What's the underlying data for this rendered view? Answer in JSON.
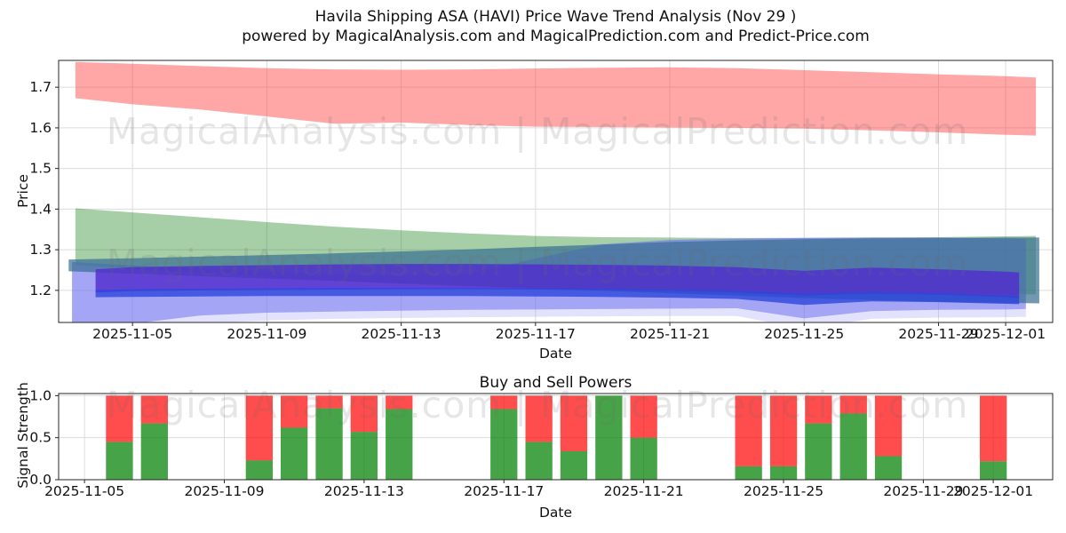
{
  "title": {
    "line1": "Havila Shipping ASA (HAVI) Price Wave Trend Analysis (Nov 29 )",
    "line2": "powered by MagicalAnalysis.com and MagicalPrediction.com and Predict-Price.com"
  },
  "watermark": {
    "text": "MagicalAnalysis.com | MagicalPrediction.com"
  },
  "colors": {
    "grid": "#dcdcdc",
    "spine": "#262626",
    "buy_green": "rgba(0,128,0,0.72)",
    "sell_red": "rgba(255,0,0,0.70)",
    "band_red": "rgba(255,60,60,0.45)",
    "band_green": "rgba(20,130,25,0.38)",
    "band_pale": "rgba(140,140,245,0.25)",
    "band_periwinkle": "rgba(110,110,240,0.52)",
    "band_teal": "rgba(55,110,145,0.70)",
    "band_purple": "rgba(80,45,205,0.82)",
    "band_blue": "rgba(45,70,220,0.80)"
  },
  "chart_data": [
    {
      "type": "area",
      "name": "price_wave",
      "xlabel": "Date",
      "ylabel": "Price",
      "day0": "2025-11-03",
      "xlim_days": [
        -0.2,
        29.4
      ],
      "ylim": [
        1.121,
        1.766
      ],
      "yticks": [
        1.2,
        1.3,
        1.4,
        1.5,
        1.6,
        1.7
      ],
      "xticks": [
        {
          "label": "2025-11-05",
          "day": 2
        },
        {
          "label": "2025-11-09",
          "day": 6
        },
        {
          "label": "2025-11-13",
          "day": 10
        },
        {
          "label": "2025-11-17",
          "day": 14
        },
        {
          "label": "2025-11-21",
          "day": 18
        },
        {
          "label": "2025-11-25",
          "day": 22
        },
        {
          "label": "2025-11-29",
          "day": 26
        },
        {
          "label": "2025-12-01",
          "day": 28
        }
      ],
      "bands": [
        {
          "name": "upper-resistance-band",
          "color_key": "band_red",
          "x_days": [
            0.3,
            2,
            4,
            6,
            8,
            10,
            12,
            14,
            16,
            18,
            20,
            22,
            24,
            26,
            28,
            28.9
          ],
          "upper": [
            1.762,
            1.758,
            1.752,
            1.747,
            1.744,
            1.743,
            1.744,
            1.746,
            1.748,
            1.749,
            1.747,
            1.742,
            1.737,
            1.732,
            1.727,
            1.724
          ],
          "lower": [
            1.673,
            1.658,
            1.645,
            1.628,
            1.61,
            1.613,
            1.607,
            1.603,
            1.602,
            1.601,
            1.6,
            1.598,
            1.594,
            1.589,
            1.583,
            1.581
          ]
        },
        {
          "name": "green-trend-band",
          "color_key": "band_green",
          "x_days": [
            0.3,
            2,
            4,
            6,
            8,
            10,
            12,
            14,
            16,
            18,
            20,
            22,
            24,
            26,
            28,
            28.9
          ],
          "upper": [
            1.402,
            1.392,
            1.38,
            1.368,
            1.357,
            1.348,
            1.34,
            1.334,
            1.331,
            1.33,
            1.329,
            1.329,
            1.33,
            1.331,
            1.333,
            1.334
          ],
          "lower": [
            1.263,
            1.253,
            1.243,
            1.233,
            1.224,
            1.216,
            1.209,
            1.203,
            1.198,
            1.194,
            1.191,
            1.19,
            1.19,
            1.19,
            1.19,
            1.19
          ]
        },
        {
          "name": "outer-pale-band",
          "color_key": "band_pale",
          "x_days": [
            0.2,
            2,
            4,
            6,
            8,
            10,
            12,
            14,
            16,
            18,
            20,
            22,
            24,
            26,
            28,
            28.6
          ],
          "upper": [
            1.27,
            1.262,
            1.254,
            1.248,
            1.242,
            1.238,
            1.242,
            1.28,
            1.315,
            1.325,
            1.328,
            1.33,
            1.33,
            1.33,
            1.328,
            1.327
          ],
          "lower": [
            1.08,
            1.1,
            1.118,
            1.126,
            1.13,
            1.132,
            1.134,
            1.135,
            1.136,
            1.137,
            1.137,
            1.105,
            1.13,
            1.133,
            1.134,
            1.135
          ]
        },
        {
          "name": "periwinkle-band",
          "color_key": "band_periwinkle",
          "x_days": [
            0.2,
            2,
            4,
            6,
            8,
            10,
            12,
            14,
            16,
            18,
            20,
            22,
            24,
            26,
            28,
            28.6
          ],
          "upper": [
            1.27,
            1.261,
            1.253,
            1.246,
            1.24,
            1.236,
            1.24,
            1.278,
            1.313,
            1.324,
            1.327,
            1.329,
            1.33,
            1.33,
            1.327,
            1.326
          ],
          "lower": [
            1.1,
            1.118,
            1.138,
            1.145,
            1.148,
            1.15,
            1.152,
            1.153,
            1.154,
            1.155,
            1.156,
            1.131,
            1.149,
            1.152,
            1.153,
            1.154
          ]
        },
        {
          "name": "teal-band",
          "color_key": "band_teal",
          "x_days": [
            0.1,
            2,
            4,
            6,
            8,
            10,
            12,
            14,
            16,
            18,
            20,
            22,
            24,
            26,
            28,
            29.0
          ],
          "upper": [
            1.276,
            1.279,
            1.283,
            1.287,
            1.291,
            1.296,
            1.301,
            1.307,
            1.313,
            1.319,
            1.323,
            1.326,
            1.328,
            1.329,
            1.33,
            1.33
          ],
          "lower": [
            1.247,
            1.241,
            1.235,
            1.229,
            1.223,
            1.217,
            1.211,
            1.205,
            1.199,
            1.193,
            1.187,
            1.181,
            1.176,
            1.172,
            1.169,
            1.168
          ]
        },
        {
          "name": "purple-core-band",
          "color_key": "band_purple",
          "x_days": [
            0.9,
            2,
            4,
            6,
            8,
            10,
            12,
            14,
            16,
            18,
            20,
            22,
            24,
            26,
            28,
            28.4
          ],
          "upper": [
            1.252,
            1.257,
            1.26,
            1.262,
            1.264,
            1.265,
            1.265,
            1.264,
            1.263,
            1.261,
            1.257,
            1.248,
            1.256,
            1.252,
            1.246,
            1.244
          ],
          "lower": [
            1.195,
            1.198,
            1.2,
            1.201,
            1.202,
            1.203,
            1.203,
            1.202,
            1.201,
            1.199,
            1.195,
            1.187,
            1.192,
            1.189,
            1.183,
            1.181
          ]
        },
        {
          "name": "blue-inner-band",
          "color_key": "band_blue",
          "x_days": [
            0.9,
            2,
            4,
            6,
            8,
            10,
            12,
            14,
            16,
            18,
            20,
            22,
            24,
            26,
            28,
            28.4
          ],
          "upper": [
            1.201,
            1.203,
            1.204,
            1.205,
            1.206,
            1.206,
            1.206,
            1.205,
            1.204,
            1.202,
            1.199,
            1.192,
            1.196,
            1.193,
            1.187,
            1.185
          ],
          "lower": [
            1.183,
            1.184,
            1.185,
            1.186,
            1.186,
            1.186,
            1.186,
            1.185,
            1.184,
            1.182,
            1.179,
            1.164,
            1.173,
            1.171,
            1.167,
            1.166
          ]
        }
      ]
    },
    {
      "type": "stacked-bar",
      "name": "buy_sell_powers",
      "title": "Buy and Sell Powers",
      "xlabel": "Date",
      "ylabel": "Signal Strength",
      "day0": "2025-11-03",
      "xlim_days": [
        1.26,
        29.7
      ],
      "ylim": [
        0,
        1.025
      ],
      "yticks": [
        0.0,
        0.5,
        1.0
      ],
      "bar_width_days": 0.77,
      "xticks": [
        {
          "label": "2025-11-05",
          "day": 2
        },
        {
          "label": "2025-11-09",
          "day": 6
        },
        {
          "label": "2025-11-13",
          "day": 10
        },
        {
          "label": "2025-11-17",
          "day": 14
        },
        {
          "label": "2025-11-21",
          "day": 18
        },
        {
          "label": "2025-11-25",
          "day": 22
        },
        {
          "label": "2025-11-29",
          "day": 26
        },
        {
          "label": "2025-12-01",
          "day": 28
        }
      ],
      "categories": [
        "2025-11-06",
        "2025-11-07",
        "2025-11-10",
        "2025-11-11",
        "2025-11-12",
        "2025-11-13",
        "2025-11-14",
        "2025-11-17",
        "2025-11-18",
        "2025-11-19",
        "2025-11-20",
        "2025-11-21",
        "2025-11-24",
        "2025-11-25",
        "2025-11-26",
        "2025-11-27",
        "2025-11-28",
        "2025-12-01"
      ],
      "series": [
        {
          "name": "buy",
          "color_key": "buy_green",
          "values": [
            0.45,
            0.67,
            0.23,
            0.62,
            0.85,
            0.57,
            0.84,
            0.84,
            0.45,
            0.34,
            1.0,
            0.5,
            0.16,
            0.16,
            0.67,
            0.79,
            0.28,
            0.22
          ]
        },
        {
          "name": "sell",
          "color_key": "sell_red",
          "values": [
            0.55,
            0.33,
            0.77,
            0.38,
            0.15,
            0.43,
            0.16,
            0.16,
            0.55,
            0.66,
            0.0,
            0.5,
            0.84,
            0.84,
            0.33,
            0.21,
            0.72,
            0.78
          ]
        }
      ]
    }
  ]
}
